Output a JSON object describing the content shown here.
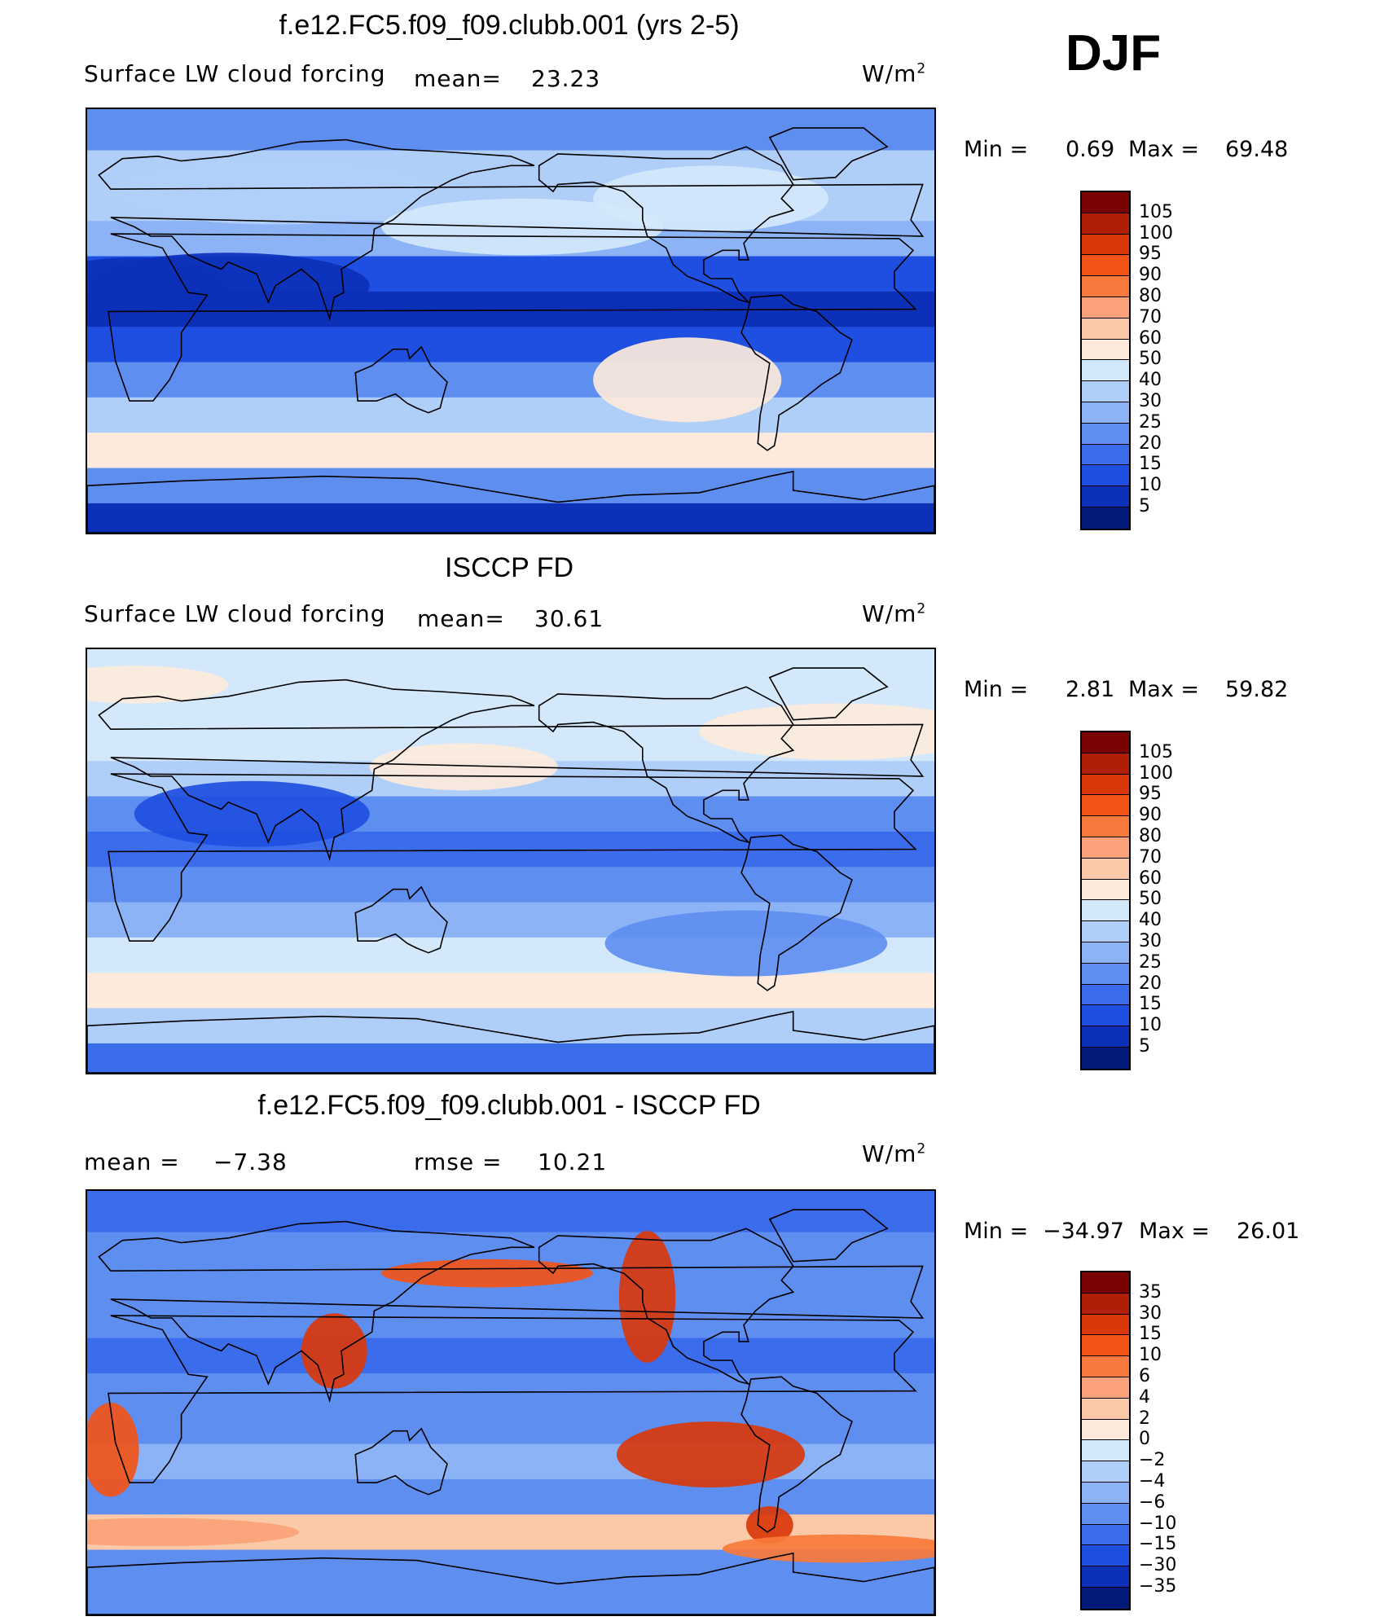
{
  "season": "DJF",
  "panels": [
    {
      "title": "f.e12.FC5.f09_f09.clubb.001 (yrs 2-5)",
      "variable": "Surface LW cloud forcing",
      "mean_label": "mean=",
      "mean_value": "23.23",
      "units_base": "W/m",
      "units_exp": "2",
      "min_label": "Min =",
      "min_value": "0.69",
      "max_label": "Max =",
      "max_value": "69.48"
    },
    {
      "title": "ISCCP FD",
      "variable": "Surface LW cloud forcing",
      "mean_label": "mean=",
      "mean_value": "30.61",
      "units_base": "W/m",
      "units_exp": "2",
      "min_label": "Min =",
      "min_value": "2.81",
      "max_label": "Max =",
      "max_value": "59.82"
    },
    {
      "title": "f.e12.FC5.f09_f09.clubb.001 - ISCCP FD",
      "mean_label": "mean =",
      "mean_value": "−7.38",
      "rmse_label": "rmse =",
      "rmse_value": "10.21",
      "units_base": "W/m",
      "units_exp": "2",
      "min_label": "Min =",
      "min_value": "−34.97",
      "max_label": "Max =",
      "max_value": "26.01"
    }
  ],
  "chart_data": [
    {
      "type": "heatmap",
      "title": "f.e12.FC5.f09_f09.clubb.001 (yrs 2-5)",
      "subtitle": "Surface LW cloud forcing",
      "units": "W/m2",
      "mean": 23.23,
      "min": 0.69,
      "max": 69.48,
      "colorbar_levels": [
        "105",
        "100",
        "95",
        "90",
        "80",
        "70",
        "60",
        "50",
        "40",
        "30",
        "25",
        "20",
        "15",
        "10",
        "5"
      ],
      "colorbar_colors": [
        "#7a0403",
        "#b01e05",
        "#d9380b",
        "#f25418",
        "#f8793b",
        "#fba27a",
        "#fbc9a8",
        "#fdeadc",
        "#d4e8fb",
        "#b0cff8",
        "#8bb3f5",
        "#5e8ef0",
        "#3b6cec",
        "#1f4fe0",
        "#0c30b8",
        "#021a7a"
      ],
      "lat_profile": [
        {
          "lat": 80,
          "value": 22
        },
        {
          "lat": 65,
          "value": 35
        },
        {
          "lat": 50,
          "value": 33
        },
        {
          "lat": 35,
          "value": 26
        },
        {
          "lat": 20,
          "value": 12
        },
        {
          "lat": 5,
          "value": 8
        },
        {
          "lat": -10,
          "value": 14
        },
        {
          "lat": -25,
          "value": 22
        },
        {
          "lat": -40,
          "value": 34
        },
        {
          "lat": -55,
          "value": 57
        },
        {
          "lat": -70,
          "value": 22
        },
        {
          "lat": -85,
          "value": 6
        }
      ]
    },
    {
      "type": "heatmap",
      "title": "ISCCP FD",
      "subtitle": "Surface LW cloud forcing",
      "units": "W/m2",
      "mean": 30.61,
      "min": 2.81,
      "max": 59.82,
      "colorbar_levels": [
        "105",
        "100",
        "95",
        "90",
        "80",
        "70",
        "60",
        "50",
        "40",
        "30",
        "25",
        "20",
        "15",
        "10",
        "5"
      ],
      "colorbar_colors": [
        "#7a0403",
        "#b01e05",
        "#d9380b",
        "#f25418",
        "#f8793b",
        "#fba27a",
        "#fbc9a8",
        "#fdeadc",
        "#d4e8fb",
        "#b0cff8",
        "#8bb3f5",
        "#5e8ef0",
        "#3b6cec",
        "#1f4fe0",
        "#0c30b8",
        "#021a7a"
      ],
      "lat_profile": [
        {
          "lat": 80,
          "value": 45
        },
        {
          "lat": 65,
          "value": 42
        },
        {
          "lat": 50,
          "value": 42
        },
        {
          "lat": 35,
          "value": 38
        },
        {
          "lat": 20,
          "value": 24
        },
        {
          "lat": 5,
          "value": 18
        },
        {
          "lat": -10,
          "value": 22
        },
        {
          "lat": -25,
          "value": 28
        },
        {
          "lat": -40,
          "value": 42
        },
        {
          "lat": -55,
          "value": 55
        },
        {
          "lat": -70,
          "value": 30
        },
        {
          "lat": -85,
          "value": 15
        }
      ]
    },
    {
      "type": "heatmap",
      "title": "f.e12.FC5.f09_f09.clubb.001 - ISCCP FD",
      "units": "W/m2",
      "mean": -7.38,
      "rmse": 10.21,
      "min": -34.97,
      "max": 26.01,
      "colorbar_levels": [
        "35",
        "30",
        "15",
        "10",
        "6",
        "4",
        "2",
        "0",
        "−2",
        "−4",
        "−6",
        "−10",
        "−15",
        "−30",
        "−35"
      ],
      "colorbar_colors": [
        "#7a0403",
        "#b01e05",
        "#d9380b",
        "#f25418",
        "#f8793b",
        "#fba27a",
        "#fbc9a8",
        "#fdeadc",
        "#d4e8fb",
        "#b0cff8",
        "#8bb3f5",
        "#5e8ef0",
        "#3b6cec",
        "#1f4fe0",
        "#0c30b8",
        "#021a7a"
      ],
      "lat_profile": [
        {
          "lat": 80,
          "value": -12
        },
        {
          "lat": 65,
          "value": -8
        },
        {
          "lat": 50,
          "value": -9
        },
        {
          "lat": 35,
          "value": -10
        },
        {
          "lat": 20,
          "value": -12
        },
        {
          "lat": 5,
          "value": -10
        },
        {
          "lat": -10,
          "value": -8
        },
        {
          "lat": -25,
          "value": -6
        },
        {
          "lat": -40,
          "value": -8
        },
        {
          "lat": -55,
          "value": 2
        },
        {
          "lat": -70,
          "value": -8
        },
        {
          "lat": -85,
          "value": -9
        }
      ]
    }
  ]
}
